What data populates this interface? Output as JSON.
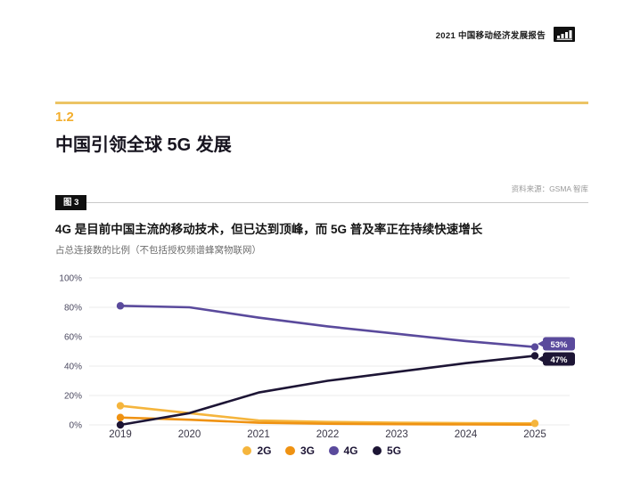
{
  "page": {
    "header": {
      "title": "2021 中国移动经济发展报告",
      "logo_icon": "signal-bars-icon"
    },
    "section": {
      "number": "1.2",
      "title": "中国引领全球 5G 发展"
    },
    "figure": {
      "badge": "图 3",
      "source": "资料来源：GSMA 智库"
    }
  },
  "colors": {
    "accent_yellow": "#F3AE2C",
    "rule_yellow": "#ECC465",
    "heading_dark": "#17141F",
    "subtitle_gray": "#6E6E6E",
    "source_gray": "#9A9A9A",
    "figure_badge_black": "#101010",
    "grid_gray": "#EBEBEB"
  },
  "chart_data": {
    "type": "line",
    "title": "4G 是目前中国主流的移动技术，但已达到顶峰，而 5G 普及率正在持续快速增长",
    "subtitle": "占总连接数的比例（不包括授权频谱蜂窝物联网）",
    "x": [
      "2019",
      "2020",
      "2021",
      "2022",
      "2023",
      "2024",
      "2025"
    ],
    "ylim": [
      0,
      100
    ],
    "yticks": [
      "0%",
      "20%",
      "40%",
      "60%",
      "80%",
      "100%"
    ],
    "grid": true,
    "grid_color": "#EBEBEB",
    "legend_position": "bottom",
    "series": [
      {
        "name": "2G",
        "color": "#F5B53D",
        "values": [
          13,
          8,
          3,
          2,
          1.5,
          1.2,
          1
        ],
        "marker_points": [
          0,
          6
        ]
      },
      {
        "name": "3G",
        "color": "#EF9212",
        "values": [
          5,
          3.5,
          1.5,
          0.8,
          0.5,
          0.3,
          0.2
        ],
        "marker_points": [
          0
        ]
      },
      {
        "name": "4G",
        "color": "#5A4A9C",
        "values": [
          81,
          80,
          73,
          67,
          62,
          57,
          53
        ],
        "marker_points": [
          0,
          6
        ],
        "end_label": "53%"
      },
      {
        "name": "5G",
        "color": "#1D1535",
        "values": [
          0,
          8,
          22,
          30,
          36,
          42,
          47
        ],
        "marker_points": [
          0,
          6
        ],
        "end_label": "47%"
      }
    ]
  }
}
